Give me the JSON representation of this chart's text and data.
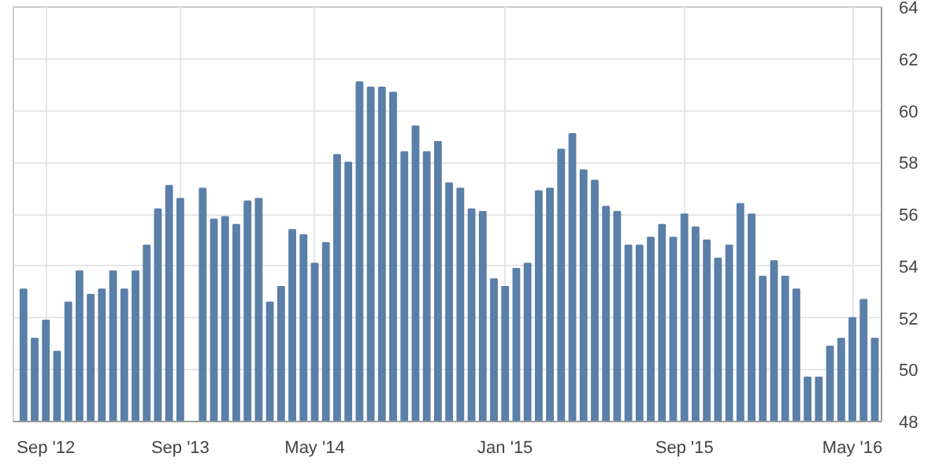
{
  "chart_data": {
    "type": "bar",
    "color": "#5a7fa8",
    "categories": [
      null,
      null,
      "Sep '12",
      null,
      null,
      null,
      null,
      null,
      null,
      null,
      null,
      null,
      null,
      null,
      "Sep '13",
      null,
      null,
      null,
      null,
      null,
      null,
      null,
      null,
      null,
      null,
      null,
      "May '14",
      null,
      null,
      null,
      null,
      null,
      null,
      null,
      null,
      null,
      null,
      null,
      null,
      null,
      null,
      null,
      null,
      "Jan '15",
      null,
      null,
      null,
      null,
      null,
      null,
      null,
      null,
      null,
      null,
      null,
      null,
      null,
      null,
      null,
      "Sep '15",
      null,
      null,
      null,
      null,
      null,
      null,
      null,
      null,
      null,
      null,
      null,
      null,
      null,
      null,
      "May '16",
      null,
      null
    ],
    "values": [
      53.1,
      51.2,
      51.9,
      50.7,
      52.6,
      53.8,
      52.9,
      53.1,
      53.8,
      53.1,
      53.8,
      54.8,
      56.2,
      57.1,
      56.6,
      null,
      57.0,
      55.8,
      55.9,
      55.6,
      56.5,
      56.6,
      52.6,
      53.2,
      55.4,
      55.2,
      54.1,
      54.9,
      58.3,
      58.0,
      61.1,
      60.9,
      60.9,
      60.7,
      58.4,
      59.4,
      58.4,
      58.8,
      57.2,
      57.0,
      56.2,
      56.1,
      53.5,
      53.2,
      53.9,
      54.1,
      56.9,
      57.0,
      58.5,
      59.1,
      57.7,
      57.3,
      56.3,
      56.1,
      54.8,
      54.8,
      55.1,
      55.6,
      55.1,
      56.0,
      55.5,
      55.0,
      54.3,
      54.8,
      56.4,
      56.0,
      53.6,
      54.2,
      53.6,
      53.1,
      49.7,
      49.7,
      50.9,
      51.2,
      52.0,
      52.7,
      51.2
    ],
    "ylim": [
      48,
      64
    ],
    "yticks": [
      48,
      50,
      52,
      54,
      56,
      58,
      60,
      62,
      64
    ],
    "grid": true
  }
}
